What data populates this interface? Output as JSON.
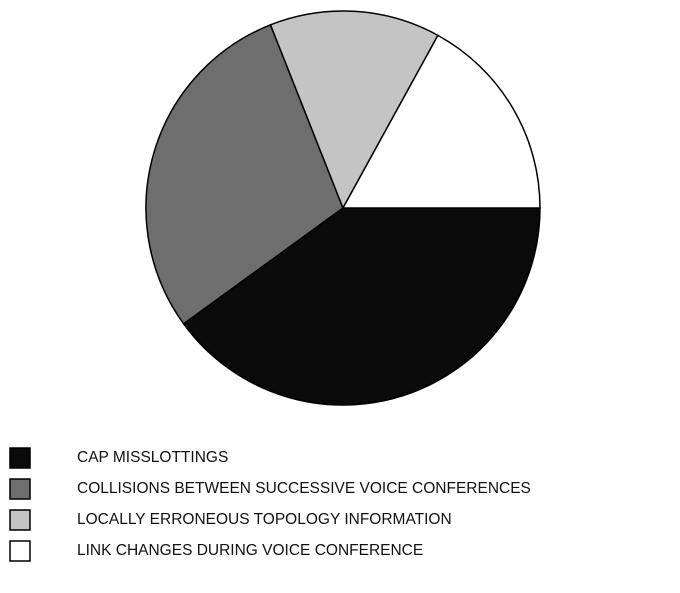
{
  "chart_data": {
    "type": "pie",
    "categories": [
      "CAP MISSLOTTINGS",
      "COLLISIONS BETWEEN SUCCESSIVE VOICE CONFERENCES",
      "LOCALLY ERRONEOUS TOPOLOGY INFORMATION",
      "LINK CHANGES DURING VOICE CONFERENCE"
    ],
    "values": [
      40,
      29,
      14,
      17
    ],
    "colors": [
      "#0a0a0a",
      "#6e6e6e",
      "#c4c4c4",
      "#ffffff"
    ]
  }
}
